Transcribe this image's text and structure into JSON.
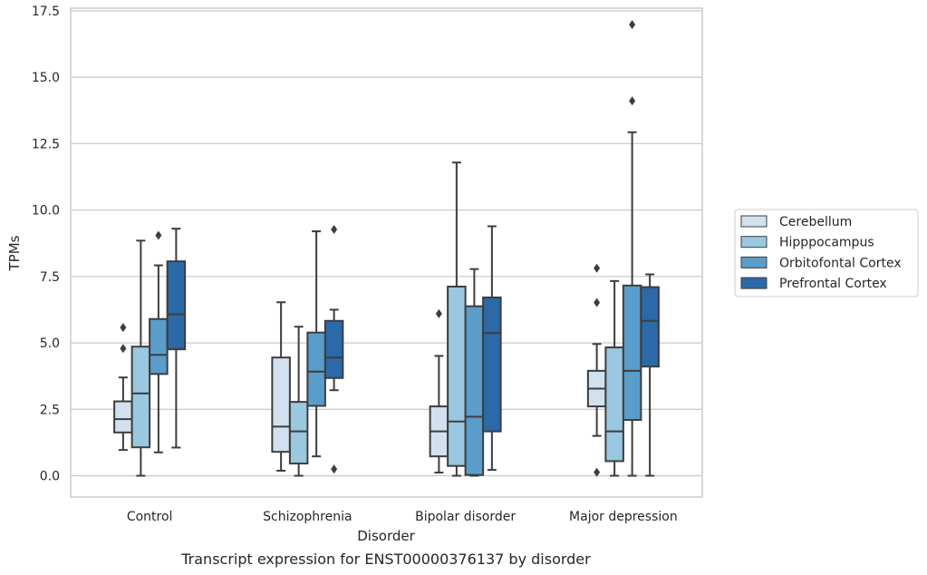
{
  "chart_data": {
    "type": "box",
    "title": "",
    "caption": "Transcript expression for ENST00000376137 by disorder",
    "xlabel": "Disorder",
    "ylabel": "TPMs",
    "ylim": [
      -0.8,
      17.6
    ],
    "yticks": [
      "0.0",
      "2.5",
      "5.0",
      "7.5",
      "10.0",
      "12.5",
      "15.0",
      "17.5"
    ],
    "grid": "horizontal",
    "legend_position": "right",
    "categories": [
      "Control",
      "Schizophrenia",
      "Bipolar disorder",
      "Major depression"
    ],
    "series": [
      {
        "name": "Cerebellum",
        "color": "#d2e1f0",
        "boxes": [
          {
            "whisker_low": 0.97,
            "q1": 1.63,
            "median": 2.13,
            "q3": 2.8,
            "whisker_high": 3.7,
            "outliers": [
              4.79,
              5.58
            ]
          },
          {
            "whisker_low": 0.19,
            "q1": 0.9,
            "median": 1.85,
            "q3": 4.45,
            "whisker_high": 6.53,
            "outliers": []
          },
          {
            "whisker_low": 0.12,
            "q1": 0.73,
            "median": 1.67,
            "q3": 2.61,
            "whisker_high": 4.51,
            "outliers": [
              6.1
            ]
          },
          {
            "whisker_low": 1.5,
            "q1": 2.61,
            "median": 3.28,
            "q3": 3.95,
            "whisker_high": 4.96,
            "outliers": [
              0.13,
              6.52,
              7.81
            ]
          }
        ]
      },
      {
        "name": "Hipppocampus",
        "color": "#9ac8e0",
        "boxes": [
          {
            "whisker_low": 0.0,
            "q1": 1.07,
            "median": 3.1,
            "q3": 4.86,
            "whisker_high": 8.85,
            "outliers": []
          },
          {
            "whisker_low": 0.0,
            "q1": 0.46,
            "median": 1.67,
            "q3": 2.78,
            "whisker_high": 5.61,
            "outliers": []
          },
          {
            "whisker_low": 0.0,
            "q1": 0.37,
            "median": 2.04,
            "q3": 7.12,
            "whisker_high": 11.79,
            "outliers": []
          },
          {
            "whisker_low": 0.0,
            "q1": 0.55,
            "median": 1.67,
            "q3": 4.83,
            "whisker_high": 7.33,
            "outliers": []
          }
        ]
      },
      {
        "name": "Orbitofontal Cortex",
        "color": "#5a9dca",
        "boxes": [
          {
            "whisker_low": 0.88,
            "q1": 3.83,
            "median": 4.55,
            "q3": 5.9,
            "whisker_high": 7.92,
            "outliers": [
              9.05
            ]
          },
          {
            "whisker_low": 0.73,
            "q1": 2.63,
            "median": 3.92,
            "q3": 5.39,
            "whisker_high": 9.2,
            "outliers": []
          },
          {
            "whisker_low": 0.0,
            "q1": 0.03,
            "median": 2.22,
            "q3": 6.38,
            "whisker_high": 7.78,
            "outliers": []
          },
          {
            "whisker_low": 0.0,
            "q1": 2.1,
            "median": 3.95,
            "q3": 7.16,
            "whisker_high": 12.93,
            "outliers": [
              14.11,
              16.98
            ]
          }
        ]
      },
      {
        "name": "Prefrontal Cortex",
        "color": "#2b69a9",
        "boxes": [
          {
            "whisker_low": 1.06,
            "q1": 4.76,
            "median": 6.08,
            "q3": 8.07,
            "whisker_high": 9.3,
            "outliers": []
          },
          {
            "whisker_low": 3.22,
            "q1": 3.68,
            "median": 4.45,
            "q3": 5.83,
            "whisker_high": 6.25,
            "outliers": [
              0.25,
              9.27
            ]
          },
          {
            "whisker_low": 0.22,
            "q1": 1.67,
            "median": 5.37,
            "q3": 6.71,
            "whisker_high": 9.39,
            "outliers": []
          },
          {
            "whisker_low": 0.0,
            "q1": 4.11,
            "median": 5.83,
            "q3": 7.1,
            "whisker_high": 7.58,
            "outliers": []
          }
        ]
      }
    ]
  }
}
